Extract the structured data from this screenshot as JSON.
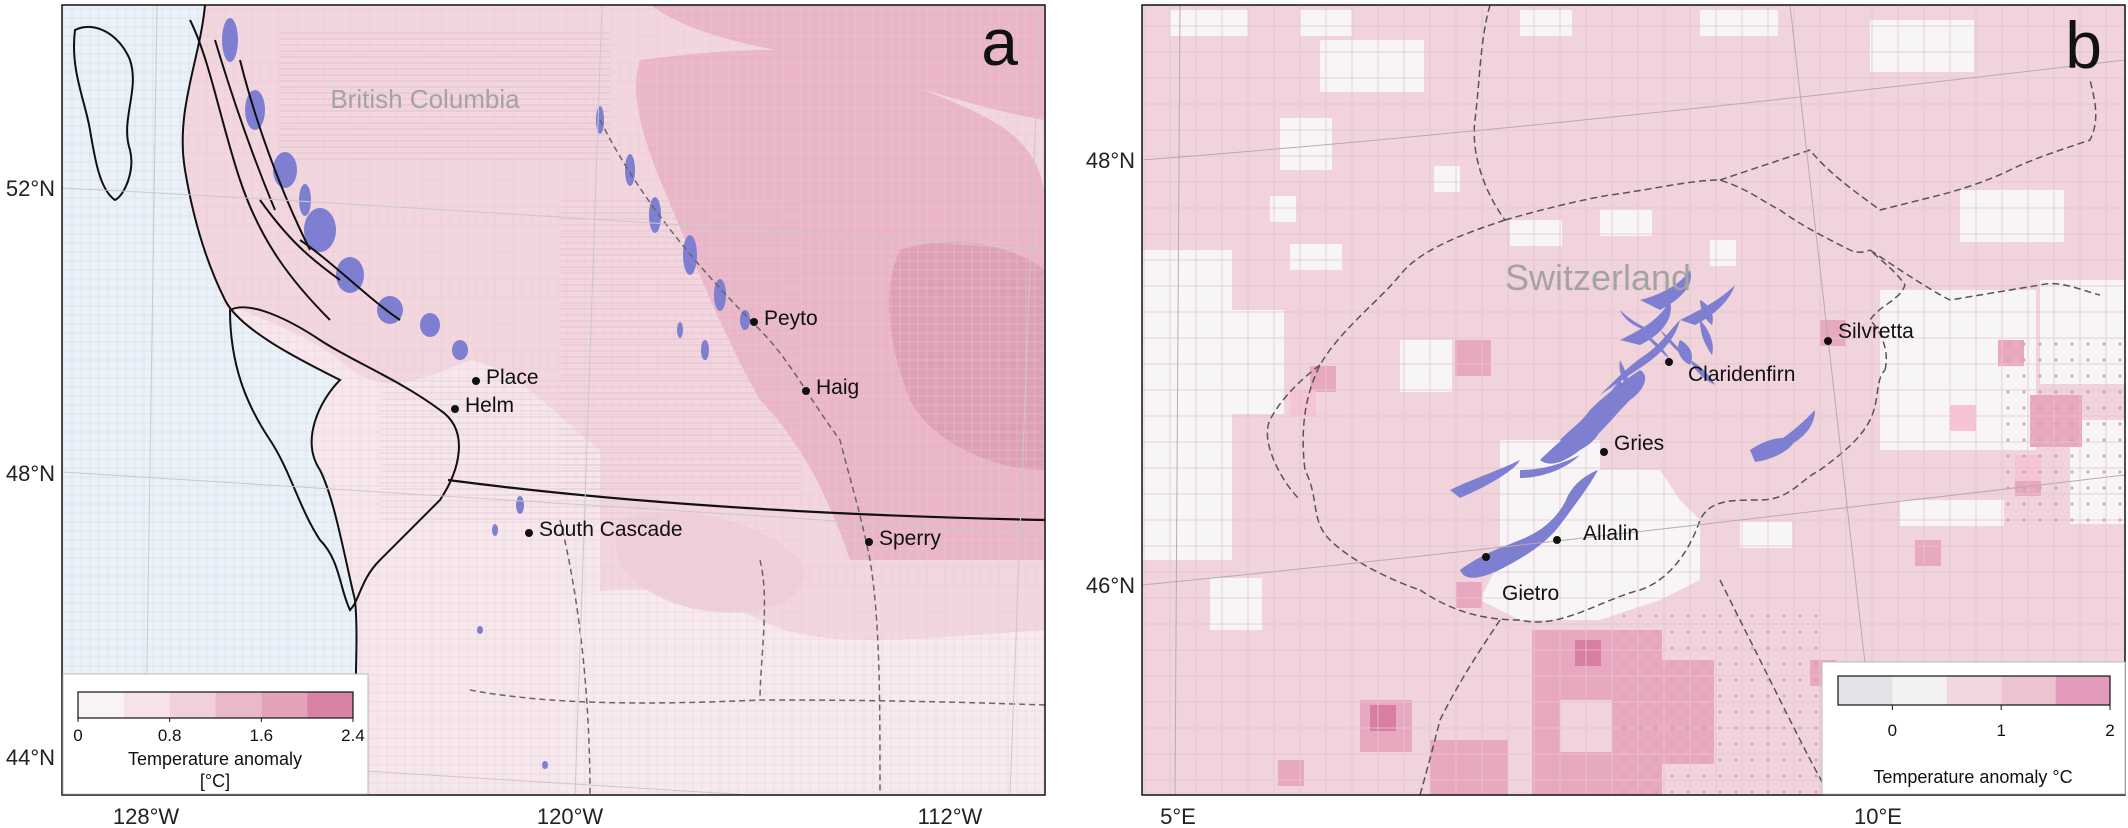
{
  "panel_a": {
    "panel_letter": "a",
    "region_label": "British Columbia",
    "lat_labels": [
      "52°N",
      "48°N",
      "44°N"
    ],
    "lon_labels": [
      "128°W",
      "120°W",
      "112°W"
    ],
    "glaciers": [
      {
        "name": "Peyto"
      },
      {
        "name": "Place"
      },
      {
        "name": "Haig"
      },
      {
        "name": "Helm"
      },
      {
        "name": "South Cascade"
      },
      {
        "name": "Sperry"
      }
    ],
    "colorbar": {
      "title_line1": "Temperature anomaly",
      "title_line2": "[°C]",
      "tick_labels": [
        "0",
        "0.8",
        "1.6",
        "2.4"
      ],
      "tick_values": [
        0,
        0.8,
        1.6,
        2.4
      ],
      "range": [
        0,
        2.4
      ],
      "bins": [
        {
          "from": 0.0,
          "to": 0.4,
          "color": "#f8f3f4"
        },
        {
          "from": 0.4,
          "to": 0.8,
          "color": "#f5e3e8"
        },
        {
          "from": 0.8,
          "to": 1.2,
          "color": "#f1d0da"
        },
        {
          "from": 1.2,
          "to": 1.6,
          "color": "#eab9c9"
        },
        {
          "from": 1.6,
          "to": 2.0,
          "color": "#e3a2ba"
        },
        {
          "from": 2.0,
          "to": 2.4,
          "color": "#d883a6"
        }
      ]
    }
  },
  "panel_b": {
    "panel_letter": "b",
    "region_label": "Switzerland",
    "lat_labels": [
      "48°N",
      "46°N"
    ],
    "lon_labels": [
      "5°E",
      "10°E"
    ],
    "glaciers": [
      {
        "name": "Silvretta"
      },
      {
        "name": "Claridenfirn"
      },
      {
        "name": "Gries"
      },
      {
        "name": "Allalin"
      },
      {
        "name": "Gietro"
      }
    ],
    "colorbar": {
      "title": "Temperature anomaly °C",
      "tick_labels": [
        "0",
        "1",
        "2"
      ],
      "tick_values": [
        0,
        1,
        2
      ],
      "range": [
        -0.5,
        2
      ],
      "bins": [
        {
          "from": -0.5,
          "to": 0.0,
          "color": "#e3e3ea"
        },
        {
          "from": 0.0,
          "to": 0.5,
          "color": "#f4f1f3"
        },
        {
          "from": 0.5,
          "to": 1.0,
          "color": "#f1d7df"
        },
        {
          "from": 1.0,
          "to": 1.5,
          "color": "#edc2d1"
        },
        {
          "from": 1.5,
          "to": 2.0,
          "color": "#e49aba"
        },
        {
          "from": 2.0,
          "to": 2.5,
          "color": "#d97ba6"
        }
      ]
    }
  },
  "colors": {
    "ocean": "#e8f2fa",
    "anomaly_base": "#f3d6df",
    "glacier": "#7e7fd0",
    "coast": "#111111",
    "border": "#555555"
  }
}
